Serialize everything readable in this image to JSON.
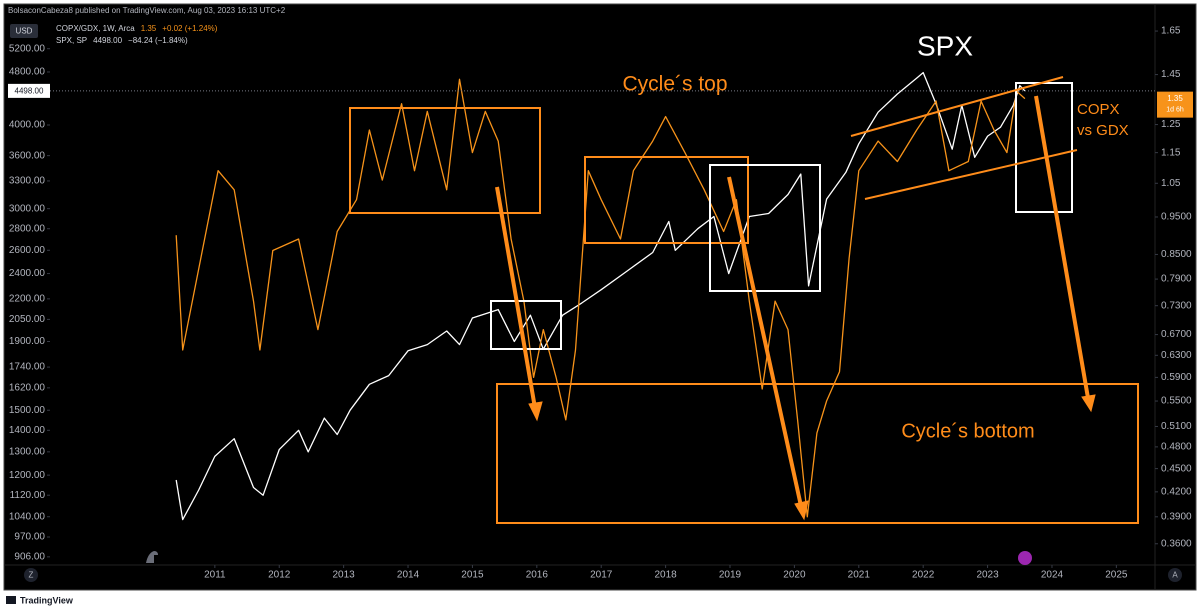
{
  "chart_data": {
    "type": "line",
    "header": "BolsaconCabeza8 published on TradingView.com, Aug 03, 2023 16:13 UTC+2",
    "currency": "USD",
    "footer": "TradingView",
    "corner_buttons": [
      "Z",
      "A"
    ],
    "annotations": [
      "Cycle´s top",
      "Cycle´s bottom",
      "SPX",
      "COPX",
      "vs GDX"
    ],
    "countdown": "1d 6h",
    "log_scale": true,
    "grid": false,
    "xlim": [
      2008.44,
      2025.6
    ],
    "xticks": [
      2011,
      2012,
      2013,
      2014,
      2015,
      2016,
      2017,
      2018,
      2019,
      2020,
      2021,
      2022,
      2023,
      2024,
      2025
    ],
    "ylim": [
      881,
      5700
    ],
    "yticks": [
      {
        "value": 5200,
        "label": "5200.00"
      },
      {
        "value": 4800,
        "label": "4800.00"
      },
      {
        "value": 4000,
        "label": "4000.00"
      },
      {
        "value": 3600,
        "label": "3600.00"
      },
      {
        "value": 3300,
        "label": "3300.00"
      },
      {
        "value": 3000,
        "label": "3000.00"
      },
      {
        "value": 2800,
        "label": "2800.00"
      },
      {
        "value": 2600,
        "label": "2600.00"
      },
      {
        "value": 2400,
        "label": "2400.00"
      },
      {
        "value": 2200,
        "label": "2200.00"
      },
      {
        "value": 2050,
        "label": "2050.00"
      },
      {
        "value": 1900,
        "label": "1900.00"
      },
      {
        "value": 1740,
        "label": "1740.00"
      },
      {
        "value": 1620,
        "label": "1620.00"
      },
      {
        "value": 1500,
        "label": "1500.00"
      },
      {
        "value": 1400,
        "label": "1400.00"
      },
      {
        "value": 1300,
        "label": "1300.00"
      },
      {
        "value": 1200,
        "label": "1200.00"
      },
      {
        "value": 1120,
        "label": "1120.00"
      },
      {
        "value": 1040,
        "label": "1040.00"
      },
      {
        "value": 970,
        "label": "970.00"
      },
      {
        "value": 906,
        "label": "906.00"
      }
    ],
    "y2lim": [
      0.338,
      1.695
    ],
    "y2ticks": [
      1.65,
      1.45,
      1.25,
      1.15,
      1.05,
      {
        "value": 0.95,
        "label": "0.9500"
      },
      {
        "value": 0.85,
        "label": "0.8500"
      },
      {
        "value": 0.79,
        "label": "0.7900"
      },
      {
        "value": 0.73,
        "label": "0.7300"
      },
      {
        "value": 0.67,
        "label": "0.6700"
      },
      {
        "value": 0.63,
        "label": "0.6300"
      },
      {
        "value": 0.59,
        "label": "0.5900"
      },
      {
        "value": 0.55,
        "label": "0.5500"
      },
      {
        "value": 0.51,
        "label": "0.5100"
      },
      {
        "value": 0.48,
        "label": "0.4800"
      },
      {
        "value": 0.45,
        "label": "0.4500"
      },
      {
        "value": 0.42,
        "label": "0.4200"
      },
      {
        "value": 0.39,
        "label": "0.3900"
      },
      {
        "value": 0.36,
        "label": "0.3600"
      }
    ],
    "series": [
      {
        "name": "SPX, SP",
        "color": "#ffffff",
        "axis": "y",
        "last_label": "4498.00",
        "change": "−84.24 (−1.84%)",
        "x": [
          2010.4,
          2010.5,
          2010.75,
          2011.0,
          2011.3,
          2011.6,
          2011.75,
          2012.0,
          2012.3,
          2012.45,
          2012.7,
          2012.9,
          2013.1,
          2013.4,
          2013.7,
          2014.0,
          2014.3,
          2014.6,
          2014.8,
          2015.0,
          2015.4,
          2015.65,
          2015.9,
          2016.1,
          2016.4,
          2016.7,
          2017.0,
          2017.4,
          2017.8,
          2018.05,
          2018.15,
          2018.5,
          2018.75,
          2018.98,
          2019.3,
          2019.6,
          2019.9,
          2020.1,
          2020.22,
          2020.5,
          2020.8,
          2021.0,
          2021.3,
          2021.6,
          2021.9,
          2022.0,
          2022.2,
          2022.45,
          2022.6,
          2022.8,
          2023.0,
          2023.2,
          2023.4,
          2023.5,
          2023.58
        ],
        "values": [
          1180,
          1030,
          1140,
          1280,
          1360,
          1150,
          1120,
          1310,
          1400,
          1300,
          1460,
          1380,
          1500,
          1640,
          1690,
          1840,
          1880,
          1970,
          1880,
          2060,
          2120,
          1900,
          2080,
          1850,
          2080,
          2170,
          2270,
          2420,
          2580,
          2870,
          2600,
          2800,
          2920,
          2400,
          2920,
          2950,
          3150,
          3380,
          2300,
          3100,
          3400,
          3750,
          4180,
          4450,
          4700,
          4790,
          4300,
          3680,
          4280,
          3580,
          3850,
          3970,
          4280,
          4580,
          4498
        ]
      },
      {
        "name": "COPX/GDX, 1W, Arca",
        "color": "#f7931a",
        "axis": "y2",
        "last_label": "1.35",
        "change": "+0.02 (+1.24%)",
        "x": [
          2010.4,
          2010.5,
          2011.05,
          2011.3,
          2011.6,
          2011.7,
          2011.9,
          2012.3,
          2012.6,
          2012.9,
          2013.2,
          2013.4,
          2013.6,
          2013.9,
          2014.1,
          2014.3,
          2014.6,
          2014.8,
          2015.0,
          2015.2,
          2015.4,
          2015.6,
          2015.8,
          2015.95,
          2016.1,
          2016.3,
          2016.45,
          2016.6,
          2016.8,
          2017.0,
          2017.3,
          2017.5,
          2017.8,
          2018.0,
          2018.3,
          2018.6,
          2018.9,
          2019.1,
          2019.3,
          2019.5,
          2019.7,
          2019.9,
          2020.05,
          2020.2,
          2020.35,
          2020.5,
          2020.7,
          2020.85,
          2021.0,
          2021.3,
          2021.6,
          2021.9,
          2022.2,
          2022.4,
          2022.7,
          2022.9,
          2023.1,
          2023.3,
          2023.45,
          2023.58
        ],
        "values": [
          0.9,
          0.64,
          1.09,
          1.03,
          0.74,
          0.64,
          0.86,
          0.89,
          0.68,
          0.91,
          1.0,
          1.23,
          1.06,
          1.33,
          1.09,
          1.3,
          1.03,
          1.43,
          1.15,
          1.3,
          1.19,
          0.89,
          0.74,
          0.59,
          0.68,
          0.59,
          0.52,
          0.64,
          1.09,
          1.0,
          0.89,
          1.09,
          1.19,
          1.28,
          1.15,
          1.03,
          0.91,
          1.0,
          0.74,
          0.57,
          0.74,
          0.68,
          0.52,
          0.39,
          0.5,
          0.55,
          0.6,
          0.84,
          1.09,
          1.19,
          1.12,
          1.23,
          1.34,
          1.09,
          1.12,
          1.34,
          1.23,
          1.15,
          1.38,
          1.35
        ]
      }
    ]
  }
}
